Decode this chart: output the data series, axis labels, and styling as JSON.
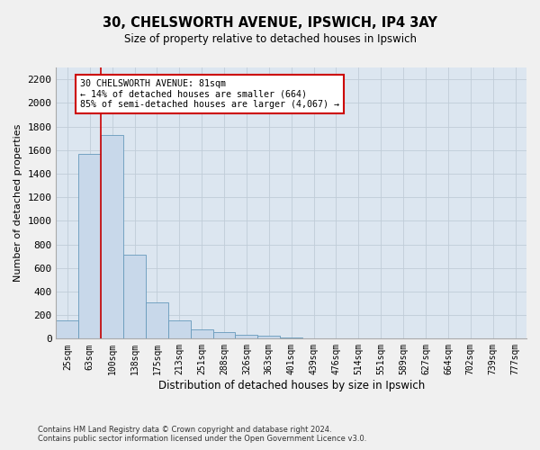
{
  "title1": "30, CHELSWORTH AVENUE, IPSWICH, IP4 3AY",
  "title2": "Size of property relative to detached houses in Ipswich",
  "xlabel": "Distribution of detached houses by size in Ipswich",
  "ylabel": "Number of detached properties",
  "footnote": "Contains HM Land Registry data © Crown copyright and database right 2024.\nContains public sector information licensed under the Open Government Licence v3.0.",
  "bar_labels": [
    "25sqm",
    "63sqm",
    "100sqm",
    "138sqm",
    "175sqm",
    "213sqm",
    "251sqm",
    "288sqm",
    "326sqm",
    "363sqm",
    "401sqm",
    "439sqm",
    "476sqm",
    "514sqm",
    "551sqm",
    "589sqm",
    "627sqm",
    "664sqm",
    "702sqm",
    "739sqm",
    "777sqm"
  ],
  "bar_values": [
    155,
    1570,
    1730,
    710,
    310,
    155,
    80,
    55,
    35,
    22,
    12,
    0,
    0,
    0,
    0,
    0,
    0,
    0,
    0,
    0,
    0
  ],
  "bar_color": "#c8d8ea",
  "bar_edge_color": "#6699bb",
  "grid_color": "#c0ccd8",
  "bg_color": "#dce6f0",
  "fig_color": "#f0f0f0",
  "annotation_text": "30 CHELSWORTH AVENUE: 81sqm\n← 14% of detached houses are smaller (664)\n85% of semi-detached houses are larger (4,067) →",
  "annotation_box_color": "#ffffff",
  "annotation_border_color": "#cc0000",
  "red_line_x": 1.5,
  "ylim": [
    0,
    2300
  ],
  "yticks": [
    0,
    200,
    400,
    600,
    800,
    1000,
    1200,
    1400,
    1600,
    1800,
    2000,
    2200
  ]
}
